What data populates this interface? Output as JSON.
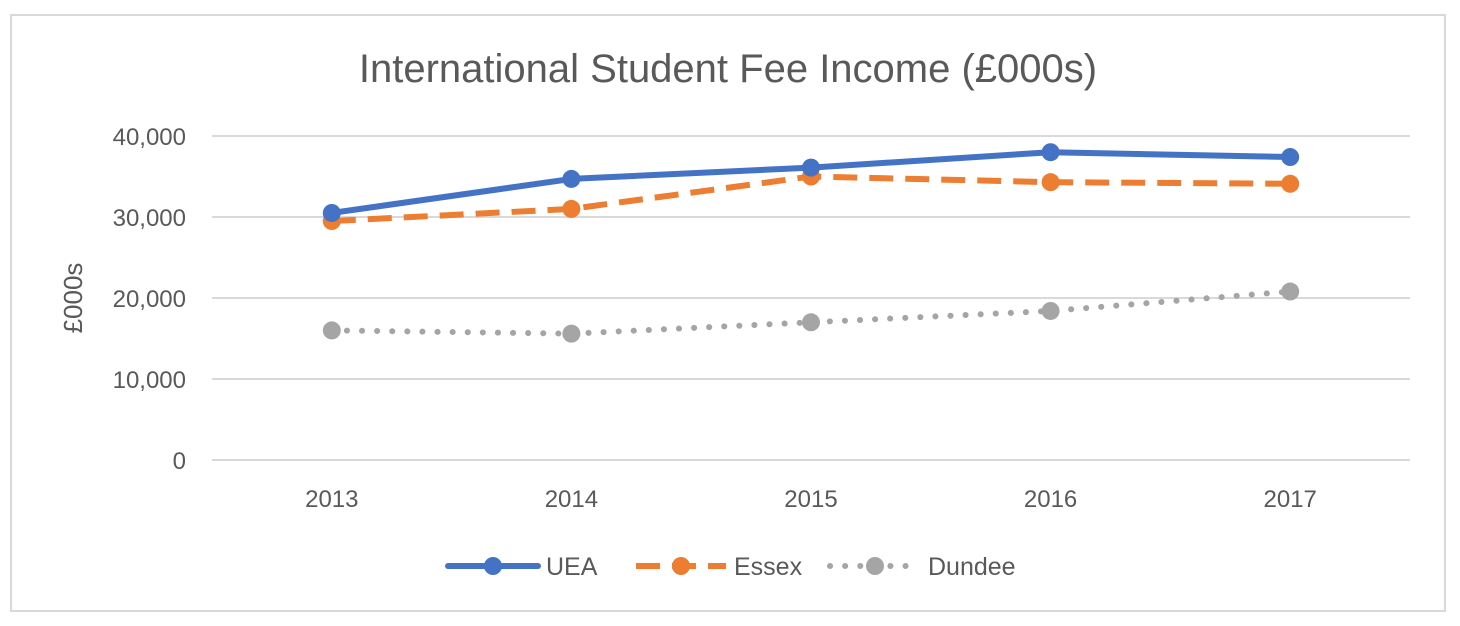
{
  "chart_data": {
    "type": "line",
    "title": "International Student Fee Income (£000s)",
    "xlabel": "",
    "ylabel": "£000s",
    "categories": [
      "2013",
      "2014",
      "2015",
      "2016",
      "2017"
    ],
    "ylim": [
      0,
      40000
    ],
    "yticks": [
      0,
      10000,
      20000,
      30000,
      40000
    ],
    "ytick_labels": [
      "0",
      "10,000",
      "20,000",
      "30,000",
      "40,000"
    ],
    "grid": true,
    "legend_position": "bottom",
    "series": [
      {
        "name": "UEA",
        "values": [
          30500,
          34700,
          36100,
          38000,
          37400
        ],
        "color": "#4472c4",
        "style": "solid"
      },
      {
        "name": "Essex",
        "values": [
          29500,
          31000,
          35000,
          34300,
          34100
        ],
        "color": "#ed7d31",
        "style": "dashed"
      },
      {
        "name": "Dundee",
        "values": [
          16000,
          15600,
          17000,
          18400,
          20800
        ],
        "color": "#a5a5a5",
        "style": "dotted"
      }
    ]
  }
}
